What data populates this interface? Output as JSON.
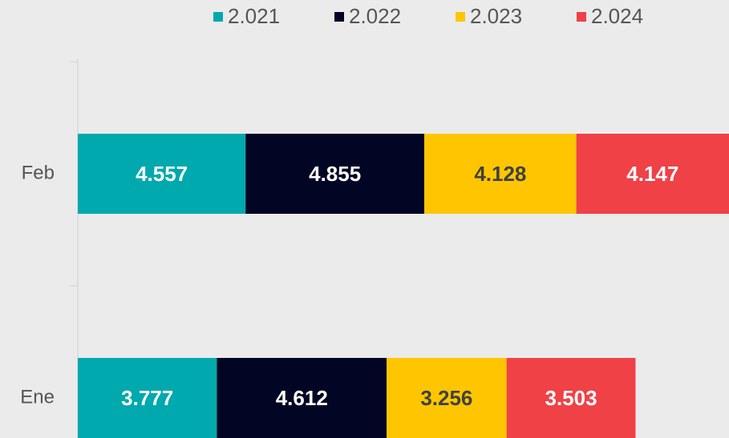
{
  "chart_data": {
    "type": "stacked-barh",
    "categories": [
      "Ene",
      "Feb"
    ],
    "series": [
      {
        "name": "2.021",
        "color": "#00a9ad",
        "label_color": "#ffffff",
        "values": [
          3777,
          4557
        ],
        "value_labels": [
          "3.777",
          "4.557"
        ]
      },
      {
        "name": "2.022",
        "color": "#020524",
        "label_color": "#ffffff",
        "values": [
          4612,
          4855
        ],
        "value_labels": [
          "4.612",
          "4.855"
        ]
      },
      {
        "name": "2.023",
        "color": "#ffc600",
        "label_color": "#404040",
        "values": [
          3256,
          4128
        ],
        "value_labels": [
          "3.256",
          "4.128"
        ]
      },
      {
        "name": "2.024",
        "color": "#ef4146",
        "label_color": "#ffffff",
        "values": [
          3503,
          4147
        ],
        "value_labels": [
          "3.503",
          "4.147"
        ]
      }
    ],
    "legend": "top"
  }
}
